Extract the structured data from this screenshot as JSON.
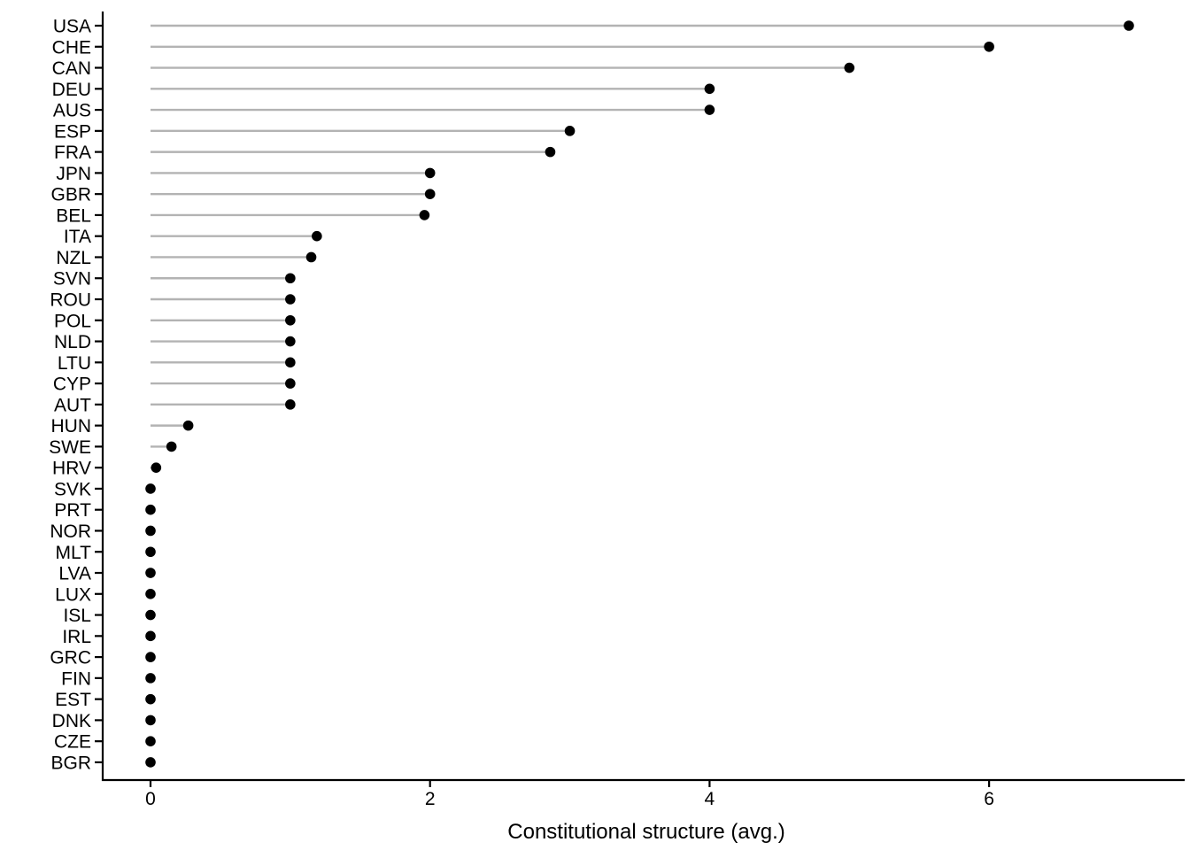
{
  "chart_data": {
    "type": "bar",
    "variant": "lollipop-horizontal",
    "title": "",
    "xlabel": "Constitutional structure (avg.)",
    "ylabel": "",
    "categories": [
      "USA",
      "CHE",
      "CAN",
      "DEU",
      "AUS",
      "ESP",
      "FRA",
      "JPN",
      "GBR",
      "BEL",
      "ITA",
      "NZL",
      "SVN",
      "ROU",
      "POL",
      "NLD",
      "LTU",
      "CYP",
      "AUT",
      "HUN",
      "SWE",
      "HRV",
      "SVK",
      "PRT",
      "NOR",
      "MLT",
      "LVA",
      "LUX",
      "ISL",
      "IRL",
      "GRC",
      "FIN",
      "EST",
      "DNK",
      "CZE",
      "BGR"
    ],
    "values": [
      7.0,
      6.0,
      5.0,
      4.0,
      4.0,
      3.0,
      2.86,
      2.0,
      2.0,
      1.96,
      1.19,
      1.15,
      1.0,
      1.0,
      1.0,
      1.0,
      1.0,
      1.0,
      1.0,
      0.27,
      0.15,
      0.04,
      0,
      0,
      0,
      0,
      0,
      0,
      0,
      0,
      0,
      0,
      0,
      0,
      0,
      0
    ],
    "xticks": [
      0,
      2,
      4,
      6
    ],
    "xlim": [
      -0.34,
      7.44
    ],
    "grid": false,
    "legend": "none",
    "baseline_value": 0,
    "colors": {
      "dot": "#000000",
      "stem": "#b3b3b3",
      "axis": "#000000",
      "text": "#000000",
      "background": "#ffffff"
    }
  }
}
